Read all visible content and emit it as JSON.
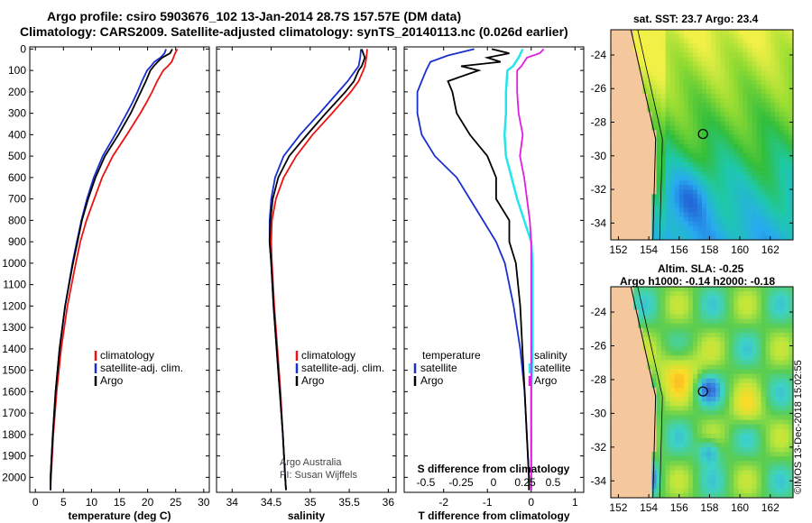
{
  "titles": {
    "line1": "Argo profile: csiro 5903676_102 13-Jan-2014 28.7S 157.57E (DM data)",
    "line2": "Climatology: CARS2009. Satellite-adjusted climatology: synTS_20140113.nc (0.026d earlier)"
  },
  "colors": {
    "climatology": "#ee1111",
    "satellite": "#1a2fd0",
    "argo": "#000000",
    "sat_salinity": "#22e6ee",
    "argo_salinity": "#e01ee0"
  },
  "depth_axis": {
    "ticks": [
      0,
      100,
      200,
      300,
      400,
      500,
      600,
      700,
      800,
      900,
      1000,
      1100,
      1200,
      1300,
      1400,
      1500,
      1600,
      1700,
      1800,
      1900,
      2000
    ]
  },
  "chart_data": [
    {
      "type": "line",
      "xlabel": "temperature (deg C)",
      "ylabel": "",
      "xlim": [
        -1,
        31
      ],
      "ylim": [
        2070,
        -10
      ],
      "xticks": [
        0,
        5,
        10,
        15,
        20,
        25,
        30
      ],
      "legend": [
        "climatology",
        "satellite-adj. clim.",
        "Argo"
      ],
      "series": [
        {
          "name": "climatology",
          "depth": [
            0,
            20,
            40,
            60,
            80,
            100,
            150,
            200,
            250,
            300,
            400,
            500,
            600,
            700,
            800,
            900,
            1000,
            1200,
            1400,
            1600,
            1800,
            2000,
            2060
          ],
          "values": [
            25.3,
            24.9,
            24.6,
            24.3,
            23.6,
            22.8,
            21.7,
            20.8,
            19.8,
            18.7,
            16.3,
            13.8,
            11.9,
            10.5,
            9.1,
            8.0,
            7.2,
            5.7,
            4.6,
            3.8,
            3.2,
            2.8,
            2.7
          ]
        },
        {
          "name": "satellite-adj. clim.",
          "depth": [
            0,
            20,
            40,
            60,
            80,
            100,
            150,
            200,
            250,
            300,
            400,
            500,
            600,
            700,
            800,
            900,
            1000,
            1200,
            1400,
            1600,
            1800,
            2000,
            2060
          ],
          "values": [
            23.3,
            23.0,
            22.3,
            21.2,
            20.6,
            19.9,
            19.0,
            18.2,
            17.3,
            16.3,
            14.2,
            12.0,
            10.4,
            9.2,
            8.2,
            7.4,
            6.6,
            5.3,
            4.3,
            3.6,
            3.1,
            2.7,
            2.7
          ]
        },
        {
          "name": "Argo",
          "depth": [
            0,
            20,
            40,
            60,
            80,
            100,
            150,
            200,
            250,
            300,
            400,
            500,
            600,
            700,
            800,
            900,
            1000,
            1200,
            1400,
            1600,
            1800,
            2000,
            2060
          ],
          "values": [
            24.4,
            24.0,
            22.6,
            21.8,
            21.1,
            20.5,
            19.7,
            18.8,
            17.9,
            17.0,
            14.8,
            12.4,
            10.7,
            9.4,
            8.3,
            7.5,
            6.7,
            5.3,
            4.3,
            3.6,
            3.1,
            2.7,
            2.7
          ]
        }
      ]
    },
    {
      "type": "line",
      "xlabel": "salinity",
      "ylabel": "",
      "xlim": [
        33.8,
        36.1
      ],
      "ylim": [
        2070,
        -10
      ],
      "xticks": [
        34,
        34.5,
        35,
        35.5,
        36
      ],
      "legend": [
        "climatology",
        "satellite-adj. clim.",
        "Argo"
      ],
      "annotation": [
        "Argo Australia",
        "PI: Susan Wijffels"
      ],
      "series": [
        {
          "name": "climatology",
          "depth": [
            0,
            40,
            80,
            100,
            150,
            200,
            300,
            400,
            500,
            600,
            700,
            800,
            900,
            1000,
            1200,
            1400,
            1600,
            1800,
            2000,
            2060
          ],
          "values": [
            35.73,
            35.72,
            35.7,
            35.68,
            35.62,
            35.52,
            35.28,
            35.03,
            34.82,
            34.66,
            34.56,
            34.51,
            34.5,
            34.51,
            34.54,
            34.58,
            34.62,
            34.65,
            34.68,
            34.69
          ]
        },
        {
          "name": "satellite-adj. clim.",
          "depth": [
            0,
            40,
            80,
            100,
            150,
            200,
            300,
            400,
            500,
            600,
            700,
            800,
            900,
            1000,
            1200,
            1400,
            1600,
            1800,
            2000,
            2060
          ],
          "values": [
            35.65,
            35.64,
            35.62,
            35.58,
            35.48,
            35.36,
            35.12,
            34.87,
            34.66,
            34.55,
            34.5,
            34.48,
            34.48,
            34.5,
            34.53,
            34.57,
            34.61,
            34.65,
            34.68,
            34.69
          ]
        },
        {
          "name": "Argo",
          "depth": [
            0,
            40,
            80,
            100,
            150,
            200,
            300,
            400,
            500,
            600,
            700,
            800,
            900,
            1000,
            1200,
            1400,
            1600,
            1800,
            2000,
            2060
          ],
          "values": [
            35.66,
            35.7,
            35.66,
            35.62,
            35.56,
            35.45,
            35.2,
            34.96,
            34.73,
            34.59,
            34.52,
            34.49,
            34.48,
            34.5,
            34.53,
            34.57,
            34.61,
            34.65,
            34.68,
            34.69
          ]
        }
      ]
    },
    {
      "type": "line",
      "xlabel": "T difference from climatology",
      "x2label": "S difference from climatology",
      "ylabel": "",
      "xlim": [
        -2.9,
        1.2
      ],
      "ylim": [
        2070,
        -10
      ],
      "xticks": [
        -2,
        -1,
        0,
        1
      ],
      "x2ticks": [
        "-0.5",
        "-0.25",
        "0",
        "0.25",
        "0.5"
      ],
      "legend_left_title": "temperature",
      "legend_right_title": "salinity",
      "legend_left": [
        "satellite",
        "Argo"
      ],
      "legend_right": [
        "satellite",
        "Argo"
      ],
      "series": [
        {
          "name": "temperature satellite",
          "depth": [
            0,
            30,
            60,
            100,
            150,
            200,
            300,
            400,
            500,
            600,
            700,
            800,
            900,
            1000,
            1200,
            1400,
            1600,
            1800,
            2000,
            2060
          ],
          "values": [
            -1.3,
            -1.9,
            -2.3,
            -2.4,
            -2.5,
            -2.6,
            -2.6,
            -2.5,
            -2.2,
            -1.7,
            -1.4,
            -1.1,
            -0.8,
            -0.6,
            -0.4,
            -0.25,
            -0.15,
            -0.1,
            -0.05,
            -0.05
          ]
        },
        {
          "name": "temperature Argo",
          "depth": [
            0,
            20,
            40,
            60,
            80,
            100,
            150,
            200,
            300,
            400,
            500,
            600,
            700,
            800,
            900,
            1000,
            1200,
            1400,
            1600,
            1800,
            2000,
            2060
          ],
          "values": [
            -0.9,
            -0.5,
            -1.0,
            -0.7,
            -1.6,
            -1.2,
            -1.9,
            -1.8,
            -1.7,
            -1.4,
            -1.0,
            -0.8,
            -0.8,
            -0.5,
            -0.5,
            -0.35,
            -0.25,
            -0.2,
            -0.15,
            -0.1,
            -0.05,
            -0.05
          ]
        },
        {
          "name": "salinity satellite",
          "depth": [
            0,
            40,
            80,
            100,
            200,
            300,
            400,
            500,
            600,
            700,
            800,
            900,
            1000,
            1200,
            1400,
            1600,
            1800,
            2000,
            2060
          ],
          "values": [
            -0.06,
            -0.09,
            -0.13,
            -0.17,
            -0.18,
            -0.18,
            -0.19,
            -0.18,
            -0.14,
            -0.1,
            -0.05,
            0.0,
            0.01,
            0.01,
            0.01,
            0.0,
            0.0,
            0.0,
            0.0
          ]
        },
        {
          "name": "salinity Argo",
          "depth": [
            0,
            20,
            40,
            80,
            100,
            200,
            300,
            400,
            500,
            600,
            700,
            800,
            900,
            1000,
            1200,
            1400,
            1600,
            1800,
            2000,
            2060
          ],
          "values": [
            0.09,
            0.06,
            -0.03,
            -0.07,
            -0.1,
            -0.1,
            -0.09,
            -0.06,
            -0.08,
            -0.05,
            -0.03,
            -0.01,
            0.0,
            0.0,
            0.0,
            0.0,
            0.0,
            0.0,
            0.0,
            0.0
          ]
        }
      ]
    },
    {
      "type": "heatmap",
      "title": "sat. SST: 23.7 Argo: 23.4",
      "xticks": [
        "152",
        "154",
        "156",
        "158",
        "160",
        "162"
      ],
      "yticks": [
        "-24",
        "-26",
        "-28",
        "-30",
        "-32",
        "-34"
      ],
      "lon_range": [
        151.5,
        163.5
      ],
      "lat_range": [
        -35.0,
        -22.5
      ],
      "marker": {
        "lon": 157.57,
        "lat": -28.7
      }
    },
    {
      "type": "heatmap",
      "title": "Altim. SLA: -0.25",
      "subtitle": "Argo h1000: -0.14 h2000: -0.18",
      "xticks": [
        "152",
        "154",
        "156",
        "158",
        "160",
        "162"
      ],
      "yticks": [
        "-24",
        "-26",
        "-28",
        "-30",
        "-32",
        "-34"
      ],
      "lon_range": [
        151.5,
        163.5
      ],
      "lat_range": [
        -35.0,
        -22.5
      ],
      "marker": {
        "lon": 157.57,
        "lat": -28.7
      }
    }
  ],
  "credit": "©IMOS 13-Dec-2018 15:02:55"
}
